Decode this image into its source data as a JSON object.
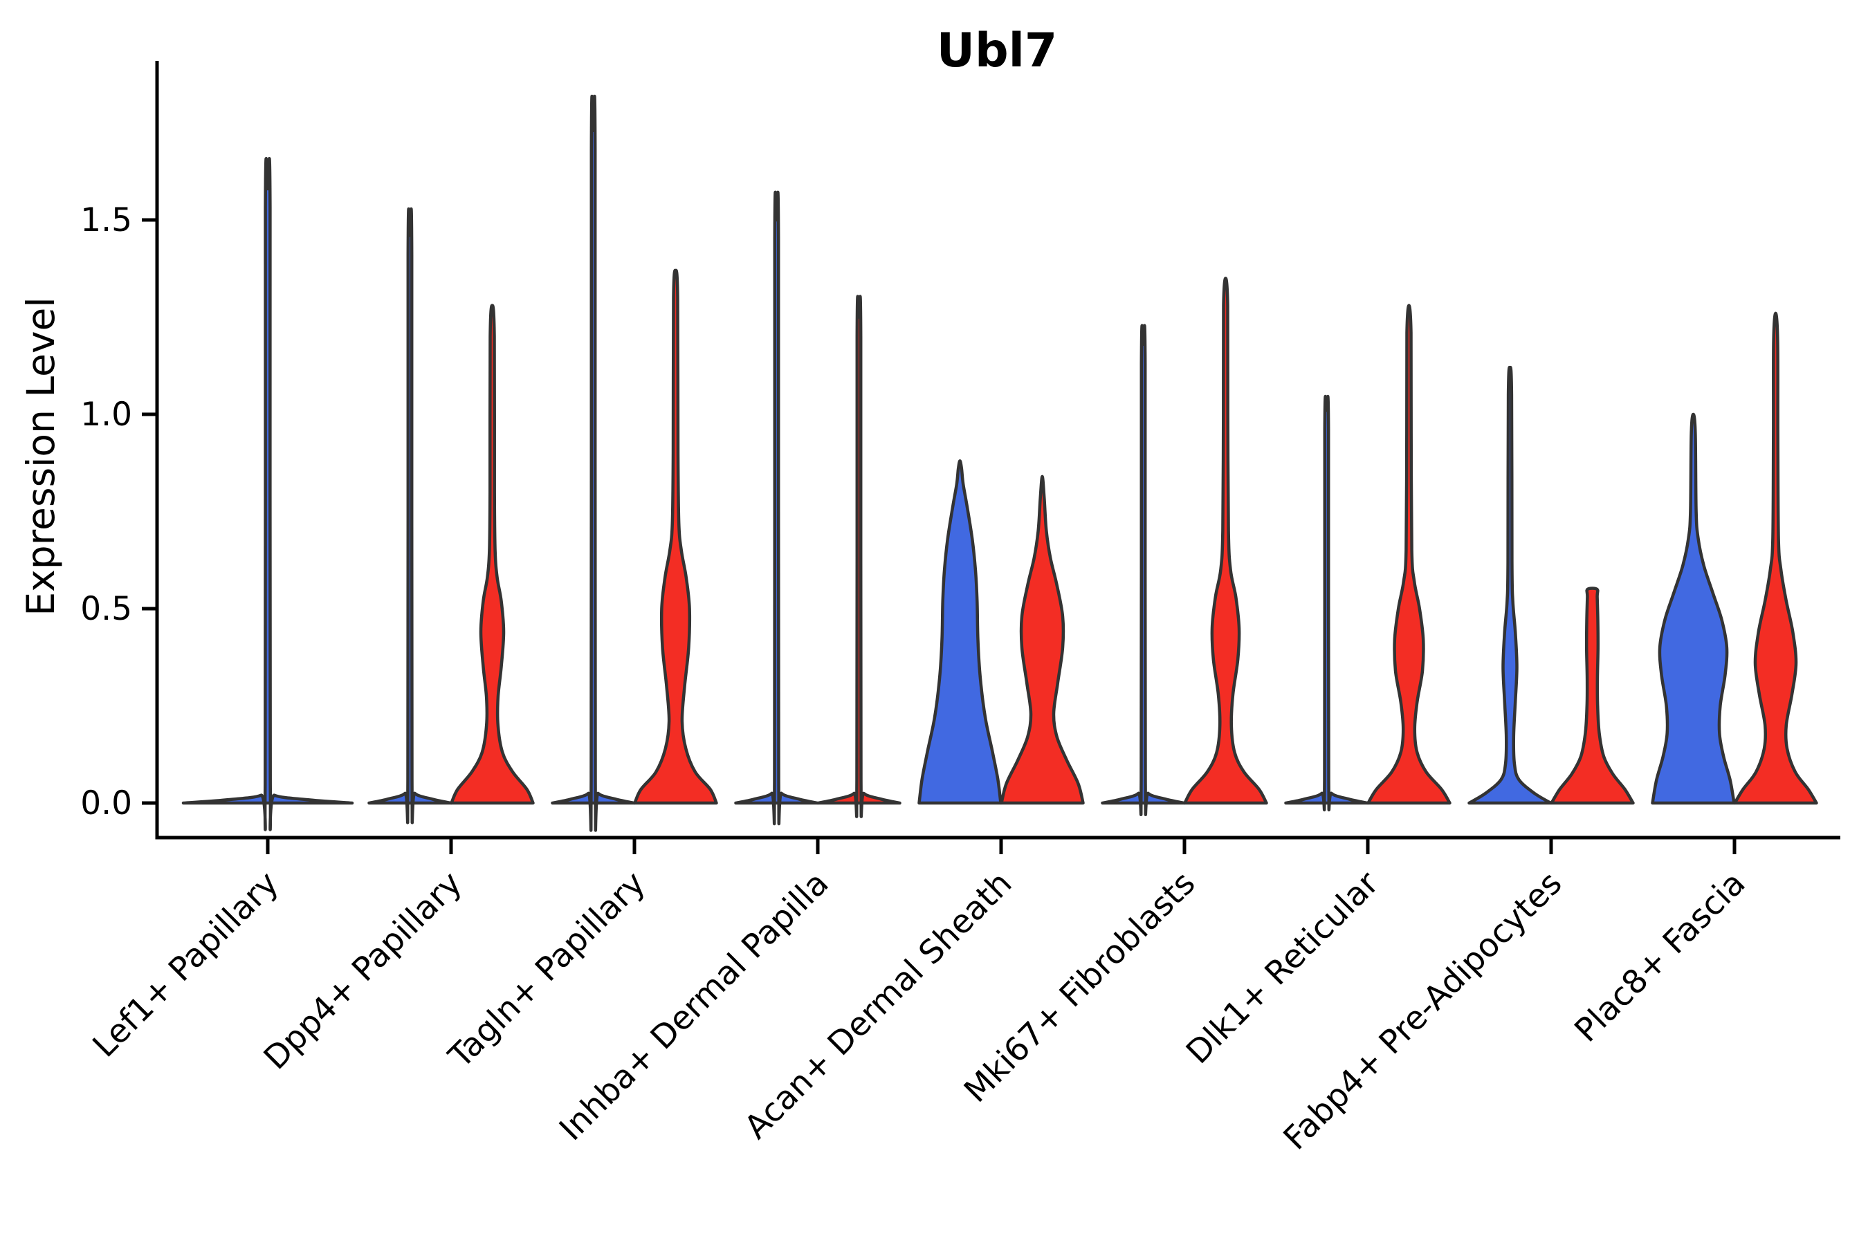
{
  "title": "Ubl7",
  "colors": {
    "red": "#F32D24",
    "blue": "#4169E1",
    "violin_edge": "#333333",
    "axis": "#000000"
  },
  "chart_data": {
    "type": "violin",
    "title": "Ubl7",
    "ylabel": "Expression Level",
    "xlabel": "",
    "ylim": [
      -0.09,
      1.92
    ],
    "yticks": [
      {
        "value": 0.0,
        "label": "0.0"
      },
      {
        "value": 0.5,
        "label": "0.5"
      },
      {
        "value": 1.0,
        "label": "1.0"
      },
      {
        "value": 1.5,
        "label": "1.5"
      }
    ],
    "categories": [
      "Lef1+ Papillary",
      "Dpp4+ Papillary",
      "Tagln+ Papillary",
      "Inhba+ Dermal Papilla",
      "Acan+ Dermal Sheath",
      "Mki67+ Fibroblasts",
      "Dlk1+ Reticular",
      "Fabp4+ Pre-Adipocytes",
      "Plac8+ Fascia"
    ],
    "legend": "none",
    "grid": "off",
    "violins": [
      {
        "category_index": 0,
        "side": "full",
        "color": "blue",
        "max_expression": 1.58,
        "tip": "sharp",
        "width_profile": [
          [
            0,
            1.0
          ],
          [
            0.008,
            0.5
          ],
          [
            0.02,
            0.08
          ],
          [
            0.05,
            0.03
          ],
          [
            1.53,
            0.028
          ]
        ]
      },
      {
        "category_index": 1,
        "side": "left",
        "color": "blue",
        "max_expression": 1.46,
        "tip": "sharp",
        "width_profile": [
          [
            0,
            1.0
          ],
          [
            0.01,
            0.55
          ],
          [
            0.025,
            0.12
          ],
          [
            0.06,
            0.05
          ],
          [
            1.41,
            0.045
          ]
        ]
      },
      {
        "category_index": 1,
        "side": "right",
        "color": "red",
        "max_expression": 1.28,
        "tip": "sharp",
        "width_profile": [
          [
            0,
            1.0
          ],
          [
            0.035,
            0.85
          ],
          [
            0.08,
            0.5
          ],
          [
            0.13,
            0.25
          ],
          [
            0.2,
            0.14
          ],
          [
            0.27,
            0.14
          ],
          [
            0.35,
            0.22
          ],
          [
            0.44,
            0.28
          ],
          [
            0.52,
            0.22
          ],
          [
            0.58,
            0.12
          ],
          [
            0.65,
            0.07
          ],
          [
            0.8,
            0.055
          ],
          [
            1.2,
            0.05
          ]
        ]
      },
      {
        "category_index": 2,
        "side": "left",
        "color": "blue",
        "max_expression": 1.73,
        "tip": "sharp",
        "width_profile": [
          [
            0,
            1.0
          ],
          [
            0.01,
            0.55
          ],
          [
            0.025,
            0.12
          ],
          [
            0.06,
            0.05
          ],
          [
            1.68,
            0.045
          ]
        ]
      },
      {
        "category_index": 2,
        "side": "right",
        "color": "red",
        "max_expression": 1.37,
        "tip": "sharp",
        "width_profile": [
          [
            0,
            1.0
          ],
          [
            0.035,
            0.85
          ],
          [
            0.08,
            0.48
          ],
          [
            0.14,
            0.25
          ],
          [
            0.21,
            0.16
          ],
          [
            0.3,
            0.22
          ],
          [
            0.4,
            0.32
          ],
          [
            0.5,
            0.34
          ],
          [
            0.58,
            0.26
          ],
          [
            0.65,
            0.14
          ],
          [
            0.72,
            0.08
          ],
          [
            0.9,
            0.06
          ],
          [
            1.3,
            0.05
          ]
        ]
      },
      {
        "category_index": 3,
        "side": "left",
        "color": "blue",
        "max_expression": 1.5,
        "tip": "sharp",
        "width_profile": [
          [
            0,
            1.0
          ],
          [
            0.01,
            0.55
          ],
          [
            0.025,
            0.12
          ],
          [
            0.06,
            0.05
          ],
          [
            1.45,
            0.045
          ]
        ]
      },
      {
        "category_index": 3,
        "side": "right",
        "color": "red",
        "max_expression": 1.25,
        "tip": "sharp",
        "width_profile": [
          [
            0,
            1.0
          ],
          [
            0.01,
            0.55
          ],
          [
            0.025,
            0.12
          ],
          [
            0.06,
            0.05
          ],
          [
            1.2,
            0.045
          ]
        ]
      },
      {
        "category_index": 4,
        "side": "left",
        "color": "blue",
        "max_expression": 0.88,
        "tip": "sharp",
        "width_profile": [
          [
            0,
            1.0
          ],
          [
            0.06,
            0.93
          ],
          [
            0.13,
            0.8
          ],
          [
            0.22,
            0.62
          ],
          [
            0.32,
            0.5
          ],
          [
            0.42,
            0.44
          ],
          [
            0.52,
            0.42
          ],
          [
            0.6,
            0.38
          ],
          [
            0.68,
            0.3
          ],
          [
            0.76,
            0.18
          ],
          [
            0.82,
            0.08
          ],
          [
            0.86,
            0.04
          ]
        ]
      },
      {
        "category_index": 4,
        "side": "right",
        "color": "red",
        "max_expression": 0.84,
        "tip": "sharp",
        "width_profile": [
          [
            0,
            1.0
          ],
          [
            0.05,
            0.88
          ],
          [
            0.11,
            0.6
          ],
          [
            0.17,
            0.36
          ],
          [
            0.23,
            0.28
          ],
          [
            0.31,
            0.38
          ],
          [
            0.4,
            0.5
          ],
          [
            0.48,
            0.5
          ],
          [
            0.56,
            0.36
          ],
          [
            0.63,
            0.2
          ],
          [
            0.7,
            0.1
          ],
          [
            0.78,
            0.05
          ]
        ]
      },
      {
        "category_index": 5,
        "side": "left",
        "color": "blue",
        "max_expression": 1.18,
        "tip": "sharp",
        "width_profile": [
          [
            0,
            1.0
          ],
          [
            0.01,
            0.55
          ],
          [
            0.025,
            0.12
          ],
          [
            0.06,
            0.05
          ],
          [
            1.13,
            0.045
          ]
        ]
      },
      {
        "category_index": 5,
        "side": "right",
        "color": "red",
        "max_expression": 1.35,
        "tip": "sharp",
        "width_profile": [
          [
            0,
            1.0
          ],
          [
            0.035,
            0.82
          ],
          [
            0.08,
            0.45
          ],
          [
            0.13,
            0.22
          ],
          [
            0.2,
            0.14
          ],
          [
            0.28,
            0.18
          ],
          [
            0.37,
            0.3
          ],
          [
            0.45,
            0.33
          ],
          [
            0.53,
            0.25
          ],
          [
            0.6,
            0.12
          ],
          [
            0.7,
            0.07
          ],
          [
            1.0,
            0.055
          ],
          [
            1.28,
            0.05
          ]
        ]
      },
      {
        "category_index": 6,
        "side": "left",
        "color": "blue",
        "max_expression": 1.01,
        "tip": "sharp",
        "width_profile": [
          [
            0,
            1.0
          ],
          [
            0.01,
            0.55
          ],
          [
            0.025,
            0.12
          ],
          [
            0.06,
            0.05
          ],
          [
            0.96,
            0.045
          ]
        ]
      },
      {
        "category_index": 6,
        "side": "right",
        "color": "red",
        "max_expression": 1.28,
        "tip": "sharp",
        "width_profile": [
          [
            0,
            1.0
          ],
          [
            0.035,
            0.8
          ],
          [
            0.08,
            0.42
          ],
          [
            0.13,
            0.2
          ],
          [
            0.19,
            0.14
          ],
          [
            0.26,
            0.2
          ],
          [
            0.34,
            0.33
          ],
          [
            0.42,
            0.35
          ],
          [
            0.5,
            0.26
          ],
          [
            0.57,
            0.13
          ],
          [
            0.65,
            0.07
          ],
          [
            0.95,
            0.055
          ],
          [
            1.21,
            0.05
          ]
        ]
      },
      {
        "category_index": 7,
        "side": "left",
        "color": "blue",
        "max_expression": 1.12,
        "tip": "sharp",
        "width_profile": [
          [
            0,
            1.0
          ],
          [
            0.025,
            0.6
          ],
          [
            0.06,
            0.22
          ],
          [
            0.1,
            0.11
          ],
          [
            0.17,
            0.09
          ],
          [
            0.26,
            0.13
          ],
          [
            0.35,
            0.17
          ],
          [
            0.44,
            0.13
          ],
          [
            0.52,
            0.07
          ],
          [
            0.62,
            0.05
          ],
          [
            1.05,
            0.04
          ]
        ]
      },
      {
        "category_index": 7,
        "side": "right",
        "color": "red",
        "max_expression": 0.55,
        "tip": "blunt",
        "width_profile": [
          [
            0,
            1.0
          ],
          [
            0.035,
            0.8
          ],
          [
            0.075,
            0.5
          ],
          [
            0.12,
            0.28
          ],
          [
            0.18,
            0.17
          ],
          [
            0.25,
            0.13
          ],
          [
            0.32,
            0.125
          ],
          [
            0.4,
            0.14
          ],
          [
            0.47,
            0.135
          ],
          [
            0.53,
            0.12
          ],
          [
            0.55,
            0.115
          ]
        ]
      },
      {
        "category_index": 8,
        "side": "left",
        "color": "blue",
        "max_expression": 1.0,
        "tip": "sharp",
        "width_profile": [
          [
            0,
            1.0
          ],
          [
            0.06,
            0.9
          ],
          [
            0.12,
            0.74
          ],
          [
            0.18,
            0.64
          ],
          [
            0.25,
            0.66
          ],
          [
            0.33,
            0.78
          ],
          [
            0.4,
            0.82
          ],
          [
            0.47,
            0.7
          ],
          [
            0.54,
            0.48
          ],
          [
            0.61,
            0.26
          ],
          [
            0.68,
            0.12
          ],
          [
            0.75,
            0.07
          ],
          [
            0.95,
            0.05
          ]
        ]
      },
      {
        "category_index": 8,
        "side": "right",
        "color": "red",
        "max_expression": 1.26,
        "tip": "sharp",
        "width_profile": [
          [
            0,
            1.0
          ],
          [
            0.035,
            0.8
          ],
          [
            0.08,
            0.48
          ],
          [
            0.14,
            0.28
          ],
          [
            0.2,
            0.26
          ],
          [
            0.28,
            0.4
          ],
          [
            0.36,
            0.5
          ],
          [
            0.44,
            0.42
          ],
          [
            0.52,
            0.26
          ],
          [
            0.6,
            0.13
          ],
          [
            0.68,
            0.07
          ],
          [
            0.95,
            0.055
          ],
          [
            1.19,
            0.05
          ]
        ]
      }
    ]
  }
}
